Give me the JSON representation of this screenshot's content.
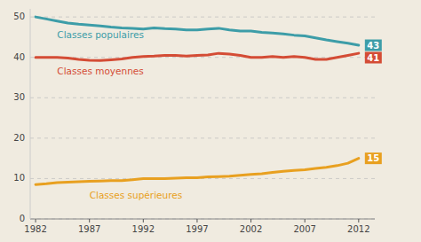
{
  "chart_data": {
    "type": "line",
    "x": [
      1982,
      1983,
      1984,
      1985,
      1986,
      1987,
      1988,
      1989,
      1990,
      1991,
      1992,
      1993,
      1994,
      1995,
      1996,
      1997,
      1998,
      1999,
      2000,
      2001,
      2002,
      2003,
      2004,
      2005,
      2006,
      2007,
      2008,
      2009,
      2010,
      2011,
      2012
    ],
    "series": [
      {
        "name": "Classes populaires",
        "color": "#3d9da8",
        "values": [
          50,
          49.5,
          49,
          48.5,
          48.2,
          48,
          47.8,
          47.5,
          47.3,
          47.2,
          47.0,
          47.3,
          47.1,
          47.0,
          46.8,
          46.8,
          47.0,
          47.2,
          46.8,
          46.5,
          46.5,
          46.2,
          46.0,
          45.8,
          45.5,
          45.3,
          44.8,
          44.3,
          43.9,
          43.5,
          43
        ]
      },
      {
        "name": "Classes moyennes",
        "color": "#d44c35",
        "values": [
          40,
          40,
          40,
          39.8,
          39.5,
          39.3,
          39.2,
          39.4,
          39.6,
          40.0,
          40.2,
          40.3,
          40.5,
          40.5,
          40.3,
          40.5,
          40.6,
          41.0,
          40.8,
          40.5,
          40.0,
          40.0,
          40.2,
          40.0,
          40.2,
          40.0,
          39.5,
          39.5,
          40.0,
          40.5,
          41
        ]
      },
      {
        "name": "Classes supérieures",
        "color": "#e8a020",
        "values": [
          8.5,
          8.7,
          9.0,
          9.1,
          9.2,
          9.3,
          9.4,
          9.5,
          9.5,
          9.7,
          10.0,
          10.0,
          10.0,
          10.1,
          10.2,
          10.2,
          10.4,
          10.5,
          10.6,
          10.8,
          11.0,
          11.2,
          11.5,
          11.8,
          12.0,
          12.2,
          12.5,
          12.8,
          13.2,
          13.8,
          15
        ]
      }
    ],
    "xlim": [
      1981.5,
      2013.5
    ],
    "xticks": [
      1982,
      1987,
      1992,
      1997,
      2002,
      2007,
      2012
    ],
    "ylim": [
      0,
      52
    ],
    "yticks": [
      0,
      10,
      20,
      30,
      40,
      50
    ],
    "grid": true
  }
}
